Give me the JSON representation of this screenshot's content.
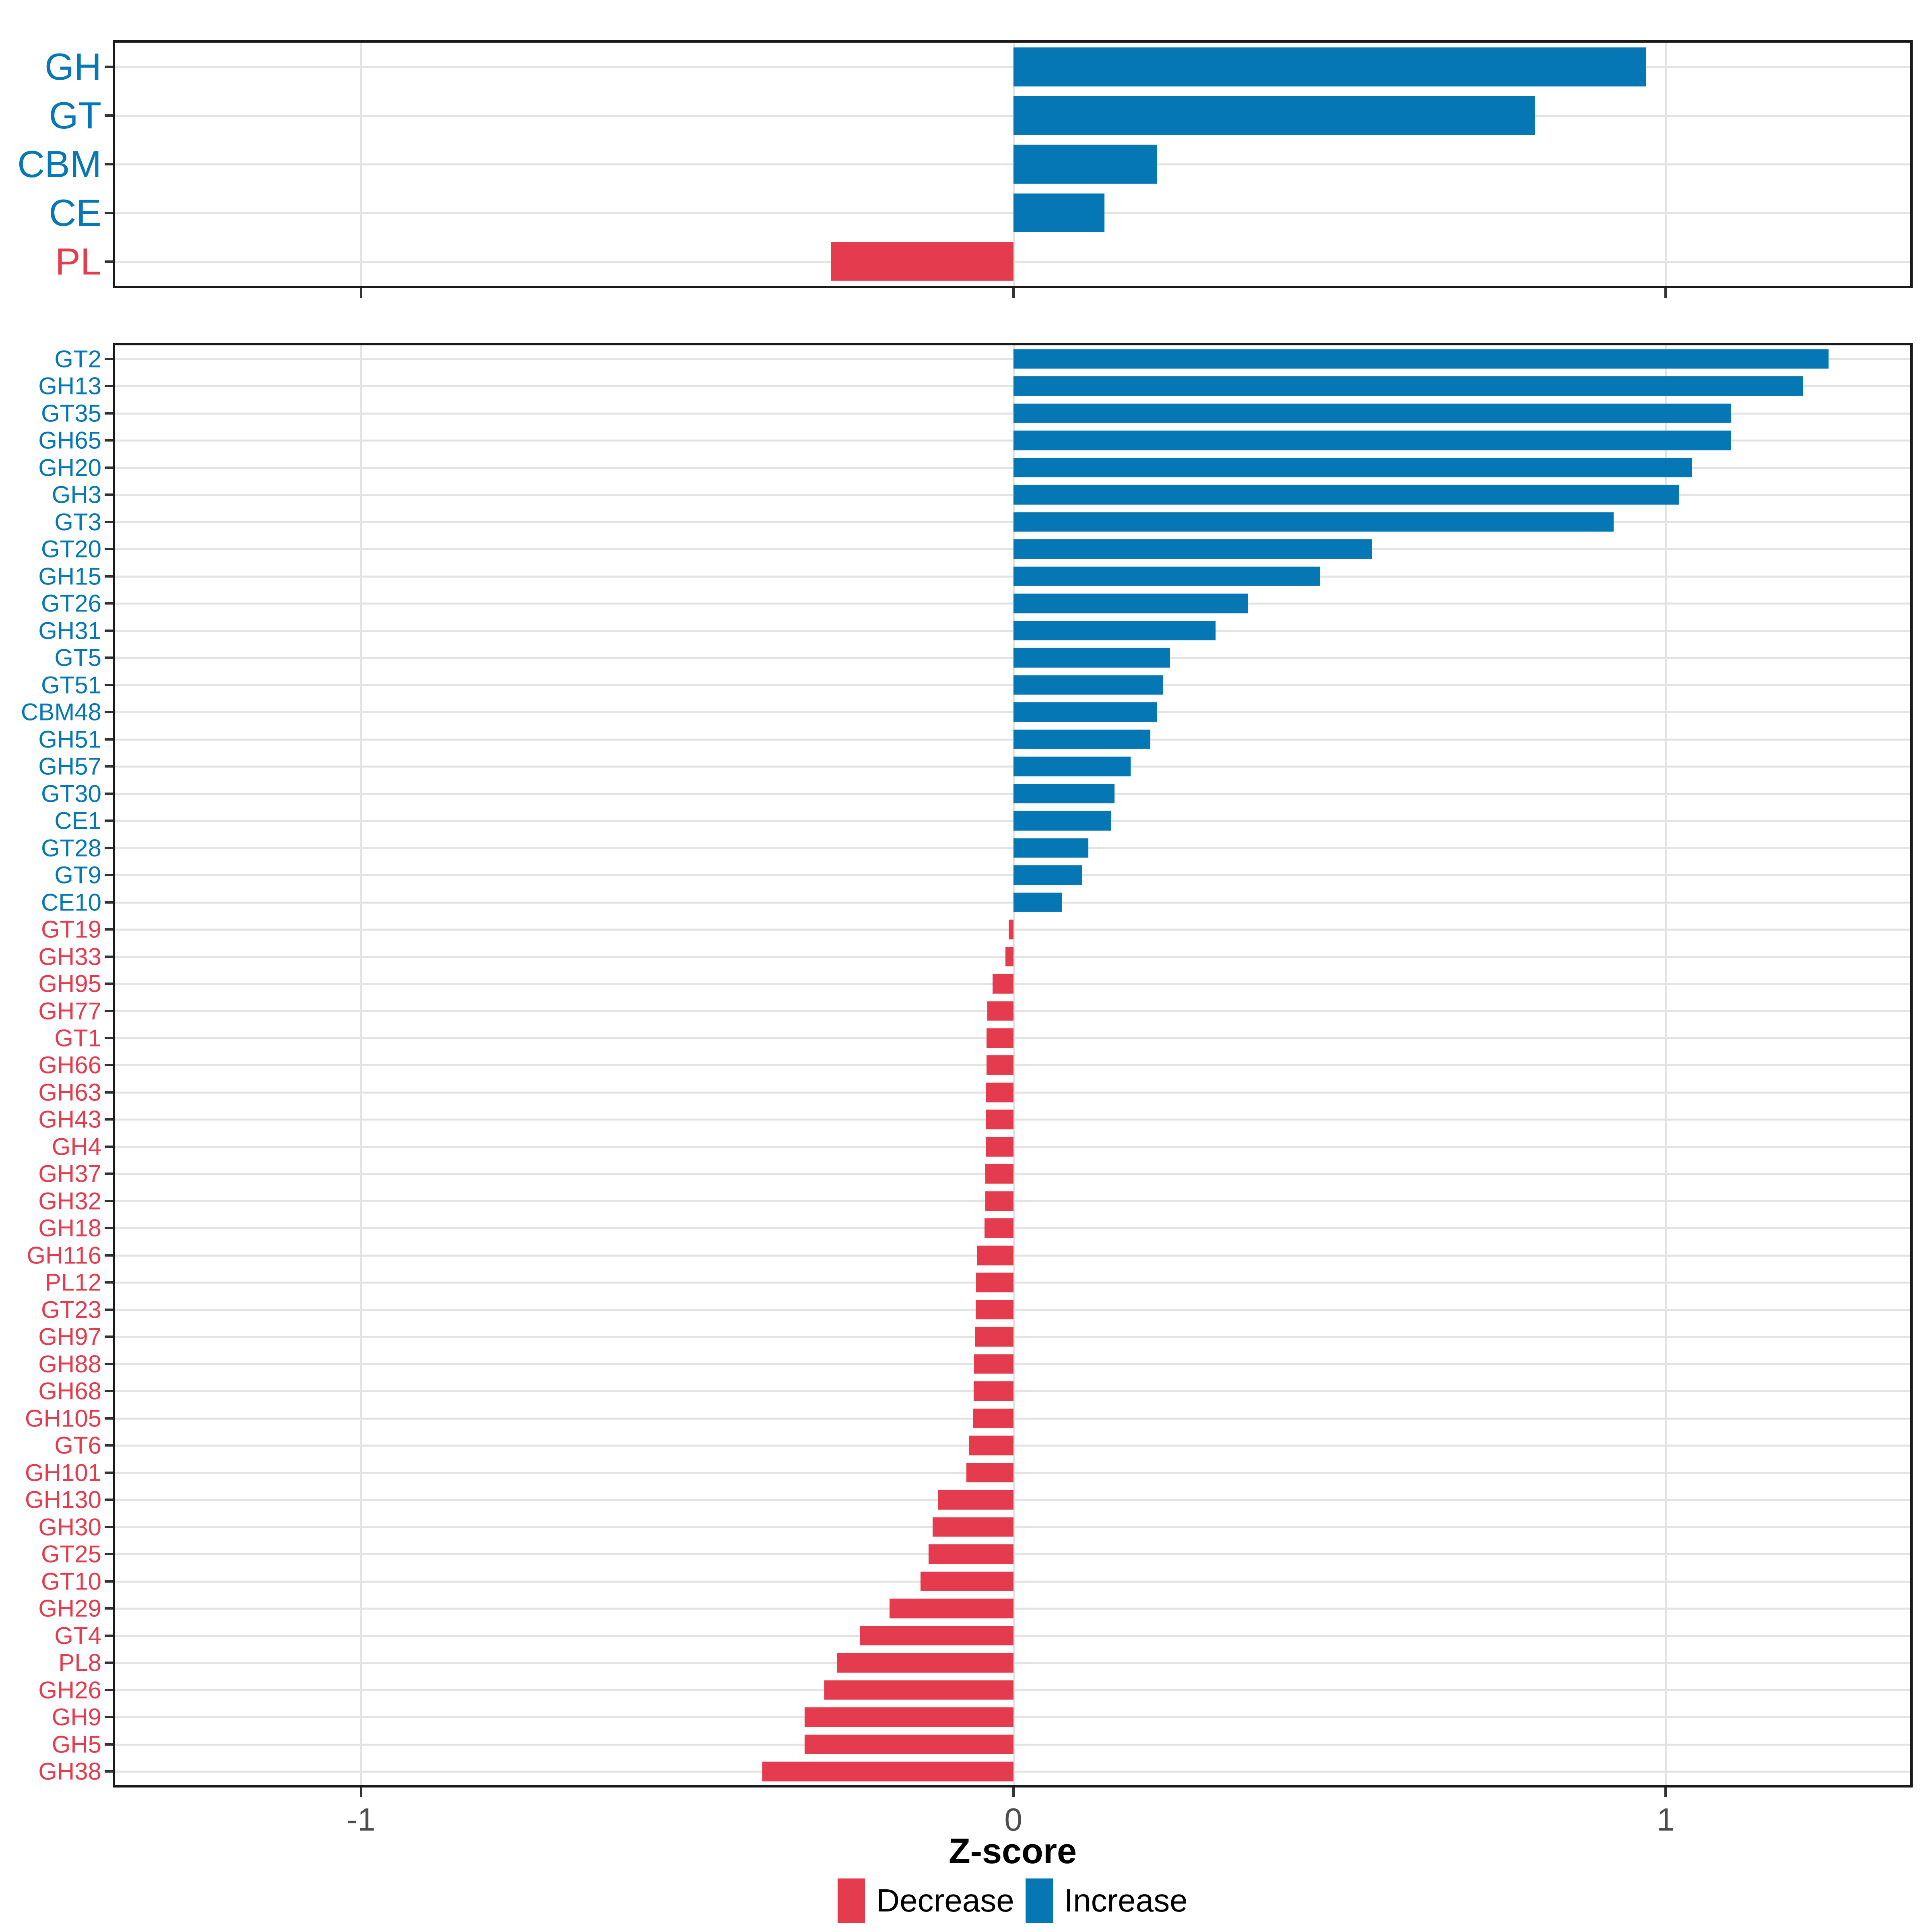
{
  "x_axis": {
    "label": "Z-score",
    "ticks": [
      -1,
      0,
      1
    ],
    "range": [
      -1.377,
      1.375
    ]
  },
  "colors": {
    "increase": "#0577B5",
    "decrease": "#E43C4E",
    "gridline": "#E3E3E3",
    "axis_tick_text": "#4D4D4D",
    "panel_border": "#1A1A1A"
  },
  "legend": {
    "items": [
      {
        "label": "Decrease",
        "color": "#E43C4E"
      },
      {
        "label": "Increase",
        "color": "#0577B5"
      }
    ]
  },
  "chart_data": [
    {
      "type": "bar",
      "orientation": "horizontal",
      "title": "",
      "xlabel": "Z-score",
      "ylabel": "",
      "xlim": [
        -1.377,
        1.375
      ],
      "x_ticks": [
        -1,
        0,
        1
      ],
      "grid": true,
      "categories": [
        "GH",
        "GT",
        "CBM",
        "CE",
        "PL"
      ],
      "values": [
        0.97,
        0.8,
        0.22,
        0.14,
        -0.28
      ],
      "series_note": "positive = Increase (blue), negative = Decrease (red)"
    },
    {
      "type": "bar",
      "orientation": "horizontal",
      "title": "",
      "xlabel": "Z-score",
      "ylabel": "",
      "xlim": [
        -1.377,
        1.375
      ],
      "x_ticks": [
        -1,
        0,
        1
      ],
      "grid": true,
      "categories": [
        "GT2",
        "GH13",
        "GT35",
        "GH65",
        "GH20",
        "GH3",
        "GT3",
        "GT20",
        "GH15",
        "GT26",
        "GH31",
        "GT5",
        "GT51",
        "CBM48",
        "GH51",
        "GH57",
        "GT30",
        "CE1",
        "GT28",
        "GT9",
        "CE10",
        "GT19",
        "GH33",
        "GH95",
        "GH77",
        "GT1",
        "GH66",
        "GH63",
        "GH43",
        "GH4",
        "GH37",
        "GH32",
        "GH18",
        "GH116",
        "PL12",
        "GT23",
        "GH97",
        "GH88",
        "GH68",
        "GH105",
        "GT6",
        "GH101",
        "GH130",
        "GH30",
        "GT25",
        "GT10",
        "GH29",
        "GT4",
        "PL8",
        "GH26",
        "GH9",
        "GH5",
        "GH38"
      ],
      "values": [
        1.25,
        1.21,
        1.1,
        1.1,
        1.04,
        1.02,
        0.92,
        0.55,
        0.47,
        0.36,
        0.31,
        0.24,
        0.23,
        0.22,
        0.21,
        0.18,
        0.155,
        0.15,
        0.115,
        0.105,
        0.075,
        -0.007,
        -0.012,
        -0.032,
        -0.04,
        -0.041,
        -0.041,
        -0.042,
        -0.042,
        -0.042,
        -0.043,
        -0.043,
        -0.044,
        -0.055,
        -0.057,
        -0.058,
        -0.059,
        -0.06,
        -0.061,
        -0.062,
        -0.068,
        -0.072,
        -0.115,
        -0.124,
        -0.13,
        -0.142,
        -0.19,
        -0.235,
        -0.27,
        -0.29,
        -0.32,
        -0.32,
        -0.385
      ],
      "series_note": "positive = Increase (blue), negative = Decrease (red)"
    }
  ]
}
